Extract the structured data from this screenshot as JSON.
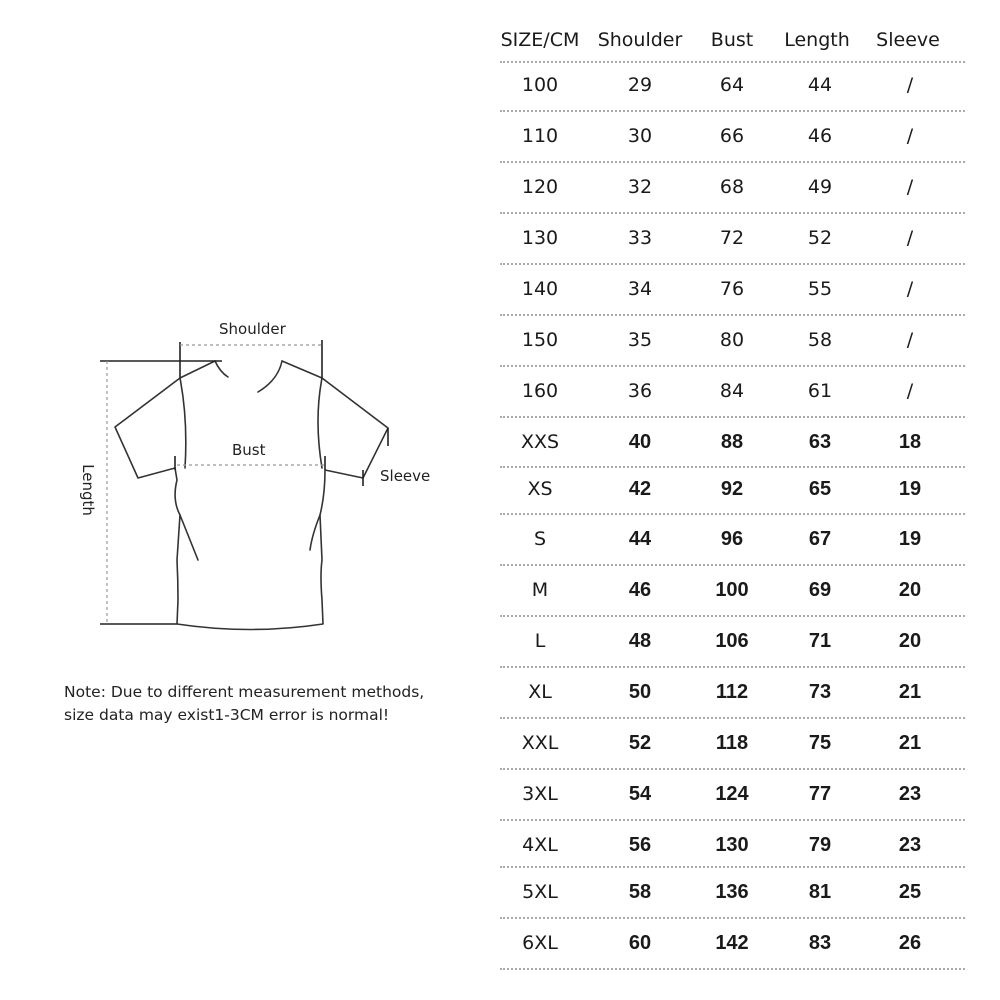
{
  "diagram": {
    "labels": {
      "shoulder": "Shoulder",
      "bust": "Bust",
      "sleeve": "Sleeve",
      "length": "Length"
    },
    "note": [
      "Note: Due to different measurement methods,",
      "size data may exist1-3CM error is normal!"
    ]
  },
  "table": {
    "headers": [
      "SIZE/CM",
      "Shoulder",
      "Bust",
      "Length",
      "Sleeve"
    ],
    "rows": [
      [
        "100",
        "29",
        "64",
        "44",
        "/"
      ],
      [
        "110",
        "30",
        "66",
        "46",
        "/"
      ],
      [
        "120",
        "32",
        "68",
        "49",
        "/"
      ],
      [
        "130",
        "33",
        "72",
        "52",
        "/"
      ],
      [
        "140",
        "34",
        "76",
        "55",
        "/"
      ],
      [
        "150",
        "35",
        "80",
        "58",
        "/"
      ],
      [
        "160",
        "36",
        "84",
        "61",
        "/"
      ],
      [
        "XXS",
        "40",
        "88",
        "63",
        "18"
      ],
      [
        "XS",
        "42",
        "92",
        "65",
        "19"
      ],
      [
        "S",
        "44",
        "96",
        "67",
        "19"
      ],
      [
        "M",
        "46",
        "100",
        "69",
        "20"
      ],
      [
        "L",
        "48",
        "106",
        "71",
        "20"
      ],
      [
        "XL",
        "50",
        "112",
        "73",
        "21"
      ],
      [
        "XXL",
        "52",
        "118",
        "75",
        "21"
      ],
      [
        "3XL",
        "54",
        "124",
        "77",
        "23"
      ],
      [
        "4XL",
        "56",
        "130",
        "79",
        "23"
      ],
      [
        "5XL",
        "58",
        "136",
        "81",
        "25"
      ],
      [
        "6XL",
        "60",
        "142",
        "83",
        "26"
      ]
    ]
  }
}
